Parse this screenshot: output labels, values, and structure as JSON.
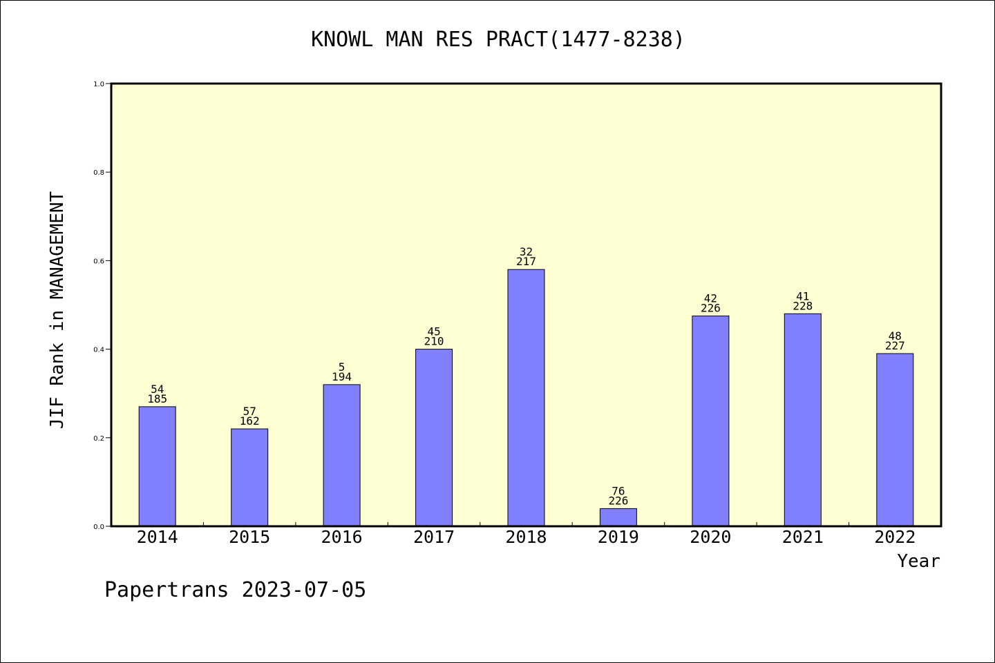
{
  "chart_data": {
    "type": "bar",
    "title": "KNOWL MAN RES PRACT(1477-8238)",
    "xlabel": "Year",
    "ylabel": "JIF Rank in MANAGEMENT",
    "ylim": [
      0,
      1.0
    ],
    "yticks": [
      "0.0",
      "0.2",
      "0.4",
      "0.6",
      "0.8",
      "1.0"
    ],
    "categories": [
      "2014",
      "2015",
      "2016",
      "2017",
      "2018",
      "2019",
      "2020",
      "2021",
      "2022"
    ],
    "values": [
      0.27,
      0.22,
      0.32,
      0.4,
      0.58,
      0.04,
      0.475,
      0.48,
      0.39
    ],
    "labels": [
      [
        "54",
        "185"
      ],
      [
        "57",
        "162"
      ],
      [
        "5",
        "194"
      ],
      [
        "45",
        "210"
      ],
      [
        "32",
        "217"
      ],
      [
        "76",
        "226"
      ],
      [
        "42",
        "226"
      ],
      [
        "41",
        "228"
      ],
      [
        "48",
        "227"
      ]
    ],
    "plot_background": "#ffffd4",
    "bar_color": "#8080ff",
    "grid": false
  },
  "footer": "Papertrans 2023-07-05"
}
